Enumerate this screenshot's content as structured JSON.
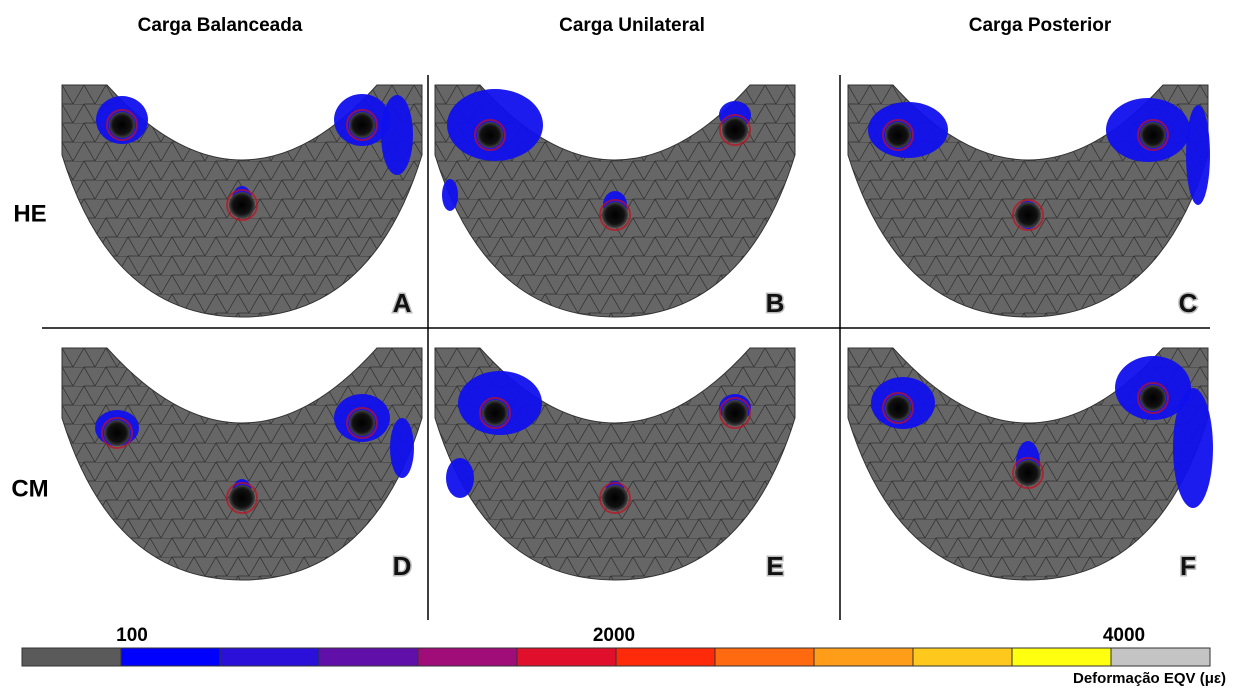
{
  "columns": [
    "Carga Balanceada",
    "Carga Unilateral",
    "Carga Posterior"
  ],
  "rows": [
    "HE",
    "CM"
  ],
  "panels": [
    "A",
    "B",
    "C",
    "D",
    "E",
    "F"
  ],
  "colorbar": {
    "labels": [
      "100",
      "2000",
      "4000"
    ],
    "title": "Deformação EQV (με)",
    "colors": [
      "#5a5a5a",
      "#0000ff",
      "#2a10d8",
      "#6010a8",
      "#a00c78",
      "#e0102c",
      "#ff2a0a",
      "#ff6a10",
      "#ff9c18",
      "#ffc81c",
      "#ffff10",
      "#c4c4c4"
    ]
  }
}
